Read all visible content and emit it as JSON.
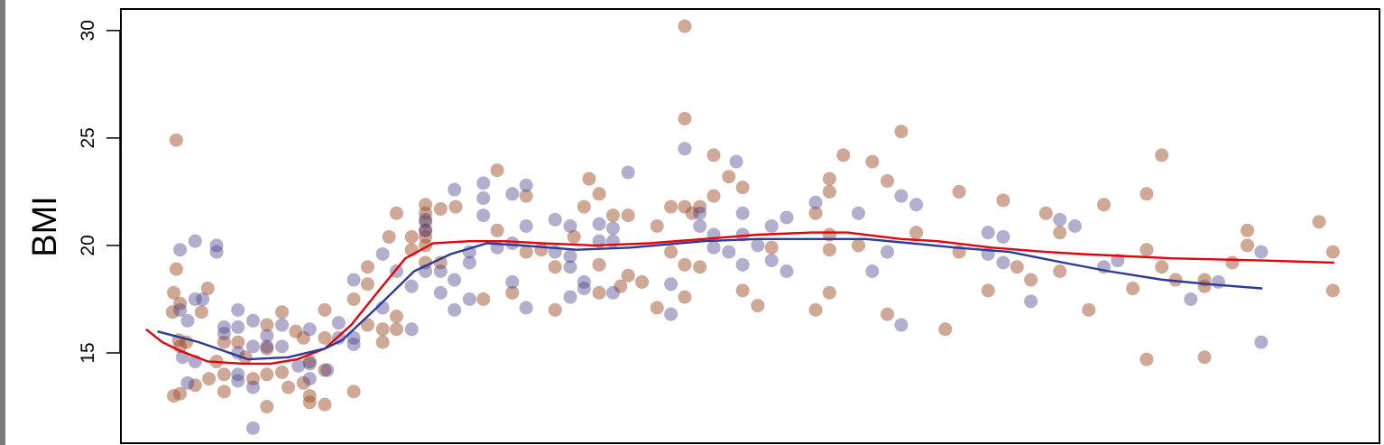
{
  "chart_data": {
    "type": "scatter",
    "title": "",
    "xlabel": "",
    "ylabel": "BMI",
    "xlim": [
      0,
      100
    ],
    "ylim": [
      10.8,
      31.0
    ],
    "yticks": [
      15,
      20,
      25,
      30
    ],
    "ytick_labels": [
      "15",
      "20",
      "25",
      "30"
    ],
    "grid": false,
    "legend": "none",
    "series": [
      {
        "name": "group-brown",
        "color": "#a0522d",
        "points": [
          [
            4.4,
            24.9
          ],
          [
            4.4,
            18.9
          ],
          [
            4.2,
            17.8
          ],
          [
            4.1,
            16.9
          ],
          [
            4.7,
            17.3
          ],
          [
            4.7,
            15.3
          ],
          [
            4.6,
            15.6
          ],
          [
            5.2,
            15.5
          ],
          [
            4.2,
            13.0
          ],
          [
            4.7,
            13.1
          ],
          [
            6.9,
            18.0
          ],
          [
            6.4,
            16.9
          ],
          [
            5.9,
            13.5
          ],
          [
            7.0,
            13.8
          ],
          [
            7.6,
            14.6
          ],
          [
            8.2,
            15.5
          ],
          [
            8.2,
            13.2
          ],
          [
            8.2,
            14.0
          ],
          [
            11.6,
            16.3
          ],
          [
            11.6,
            14.0
          ],
          [
            11.6,
            12.5
          ],
          [
            12.8,
            16.9
          ],
          [
            12.8,
            14.1
          ],
          [
            13.3,
            13.4
          ],
          [
            14.5,
            15.7
          ],
          [
            14.5,
            13.6
          ],
          [
            15.0,
            13.0
          ],
          [
            15.0,
            12.7
          ],
          [
            15.0,
            14.6
          ],
          [
            16.2,
            17.0
          ],
          [
            16.2,
            14.2
          ],
          [
            16.2,
            12.6
          ],
          [
            16.2,
            15.7
          ],
          [
            18.5,
            17.5
          ],
          [
            18.5,
            13.2
          ],
          [
            19.6,
            19.0
          ],
          [
            19.6,
            18.2
          ],
          [
            19.6,
            16.3
          ],
          [
            20.8,
            16.1
          ],
          [
            20.8,
            15.5
          ],
          [
            21.3,
            20.4
          ],
          [
            21.9,
            21.5
          ],
          [
            23.1,
            20.4
          ],
          [
            23.1,
            19.8
          ],
          [
            24.2,
            21.9
          ],
          [
            24.2,
            21.5
          ],
          [
            24.2,
            21.1
          ],
          [
            24.2,
            20.7
          ],
          [
            24.2,
            20.4
          ],
          [
            24.2,
            20.0
          ],
          [
            24.2,
            19.2
          ],
          [
            25.4,
            21.7
          ],
          [
            25.4,
            19.2
          ],
          [
            21.9,
            16.7
          ],
          [
            21.9,
            16.1
          ],
          [
            9.3,
            15.5
          ],
          [
            9.9,
            14.8
          ],
          [
            10.5,
            13.8
          ],
          [
            13.9,
            16.0
          ],
          [
            11.6,
            15.2
          ],
          [
            26.6,
            21.8
          ],
          [
            28.8,
            17.5
          ],
          [
            29.9,
            23.5
          ],
          [
            29.9,
            20.7
          ],
          [
            31.1,
            17.8
          ],
          [
            32.2,
            22.3
          ],
          [
            32.2,
            19.7
          ],
          [
            33.4,
            19.8
          ],
          [
            34.5,
            19.0
          ],
          [
            34.5,
            17.0
          ],
          [
            36.0,
            20.4
          ],
          [
            36.8,
            21.8
          ],
          [
            37.2,
            23.1
          ],
          [
            38.0,
            22.4
          ],
          [
            38.0,
            19.1
          ],
          [
            38.0,
            17.8
          ],
          [
            39.1,
            21.4
          ],
          [
            39.7,
            18.1
          ],
          [
            40.3,
            21.4
          ],
          [
            40.3,
            18.6
          ],
          [
            41.4,
            18.3
          ],
          [
            42.6,
            20.9
          ],
          [
            42.6,
            17.1
          ],
          [
            43.7,
            21.8
          ],
          [
            43.7,
            19.7
          ],
          [
            44.8,
            30.2
          ],
          [
            44.8,
            25.9
          ],
          [
            44.8,
            21.8
          ],
          [
            44.8,
            19.1
          ],
          [
            44.8,
            17.6
          ],
          [
            45.4,
            21.5
          ],
          [
            46.0,
            21.8
          ],
          [
            46.0,
            19.0
          ],
          [
            47.1,
            24.2
          ],
          [
            47.1,
            22.3
          ],
          [
            48.3,
            23.2
          ],
          [
            49.4,
            22.7
          ],
          [
            49.4,
            17.9
          ],
          [
            50.6,
            17.2
          ],
          [
            51.7,
            19.9
          ],
          [
            55.2,
            21.5
          ],
          [
            55.2,
            17.0
          ],
          [
            56.3,
            23.1
          ],
          [
            56.3,
            22.5
          ],
          [
            56.3,
            20.5
          ],
          [
            56.3,
            19.8
          ],
          [
            56.3,
            17.8
          ],
          [
            57.4,
            24.2
          ],
          [
            58.6,
            20.0
          ],
          [
            59.7,
            23.9
          ],
          [
            60.9,
            23.0
          ],
          [
            60.9,
            16.8
          ],
          [
            62.0,
            25.3
          ],
          [
            63.2,
            20.6
          ],
          [
            65.5,
            16.1
          ],
          [
            66.6,
            22.5
          ],
          [
            66.6,
            19.7
          ],
          [
            68.9,
            17.9
          ],
          [
            70.1,
            22.1
          ],
          [
            71.2,
            19.0
          ],
          [
            72.3,
            18.4
          ],
          [
            73.5,
            21.5
          ],
          [
            74.6,
            20.6
          ],
          [
            74.6,
            18.8
          ],
          [
            76.9,
            17.0
          ],
          [
            78.1,
            21.9
          ],
          [
            80.4,
            18.0
          ],
          [
            81.5,
            22.4
          ],
          [
            81.5,
            19.8
          ],
          [
            81.5,
            14.7
          ],
          [
            82.7,
            24.2
          ],
          [
            82.7,
            19.0
          ],
          [
            83.8,
            18.4
          ],
          [
            86.1,
            18.4
          ],
          [
            86.1,
            18.1
          ],
          [
            86.1,
            14.8
          ],
          [
            88.3,
            19.2
          ],
          [
            89.5,
            20.7
          ],
          [
            89.5,
            20.0
          ],
          [
            95.2,
            21.1
          ],
          [
            96.3,
            19.7
          ],
          [
            96.3,
            17.9
          ]
        ]
      },
      {
        "name": "group-blue",
        "color": "#483d8b",
        "points": [
          [
            4.7,
            19.8
          ],
          [
            5.9,
            20.2
          ],
          [
            7.6,
            20.0
          ],
          [
            7.6,
            19.7
          ],
          [
            5.9,
            17.5
          ],
          [
            6.5,
            17.5
          ],
          [
            4.7,
            17.0
          ],
          [
            5.3,
            16.5
          ],
          [
            4.9,
            14.8
          ],
          [
            5.3,
            13.6
          ],
          [
            5.9,
            14.6
          ],
          [
            8.2,
            16.2
          ],
          [
            8.2,
            15.9
          ],
          [
            9.3,
            17.0
          ],
          [
            9.3,
            16.2
          ],
          [
            9.3,
            15.0
          ],
          [
            9.3,
            14.0
          ],
          [
            9.3,
            13.7
          ],
          [
            10.5,
            16.5
          ],
          [
            10.5,
            15.3
          ],
          [
            10.5,
            13.4
          ],
          [
            10.5,
            11.5
          ],
          [
            11.6,
            15.8
          ],
          [
            11.6,
            15.3
          ],
          [
            12.8,
            16.3
          ],
          [
            12.8,
            15.3
          ],
          [
            14.1,
            14.4
          ],
          [
            15.0,
            16.1
          ],
          [
            15.0,
            14.5
          ],
          [
            15.0,
            13.8
          ],
          [
            17.3,
            15.7
          ],
          [
            17.3,
            16.4
          ],
          [
            18.5,
            18.4
          ],
          [
            18.5,
            15.7
          ],
          [
            18.5,
            15.4
          ],
          [
            20.8,
            19.6
          ],
          [
            20.8,
            17.1
          ],
          [
            21.9,
            18.8
          ],
          [
            23.1,
            16.1
          ],
          [
            23.1,
            18.1
          ],
          [
            24.2,
            21.2
          ],
          [
            24.2,
            20.7
          ],
          [
            24.2,
            18.8
          ],
          [
            25.4,
            17.8
          ],
          [
            25.4,
            18.8
          ],
          [
            16.4,
            14.2
          ],
          [
            26.5,
            22.6
          ],
          [
            26.5,
            18.4
          ],
          [
            26.5,
            17.0
          ],
          [
            27.7,
            19.7
          ],
          [
            27.7,
            19.2
          ],
          [
            27.7,
            17.5
          ],
          [
            28.8,
            22.9
          ],
          [
            28.8,
            22.2
          ],
          [
            28.8,
            21.4
          ],
          [
            29.9,
            19.9
          ],
          [
            31.1,
            22.4
          ],
          [
            31.1,
            20.1
          ],
          [
            31.1,
            18.3
          ],
          [
            32.2,
            22.8
          ],
          [
            32.2,
            20.9
          ],
          [
            32.2,
            17.1
          ],
          [
            34.5,
            21.2
          ],
          [
            34.5,
            19.7
          ],
          [
            35.7,
            20.9
          ],
          [
            35.7,
            19.5
          ],
          [
            35.7,
            19.0
          ],
          [
            35.7,
            17.6
          ],
          [
            36.8,
            18.3
          ],
          [
            36.8,
            18.0
          ],
          [
            38.0,
            21.0
          ],
          [
            38.0,
            20.2
          ],
          [
            39.1,
            20.8
          ],
          [
            39.1,
            20.2
          ],
          [
            39.1,
            17.8
          ],
          [
            40.3,
            23.4
          ],
          [
            43.7,
            18.2
          ],
          [
            43.7,
            16.8
          ],
          [
            44.8,
            24.5
          ],
          [
            46.0,
            21.5
          ],
          [
            46.0,
            20.9
          ],
          [
            47.1,
            20.5
          ],
          [
            47.1,
            19.9
          ],
          [
            48.3,
            19.7
          ],
          [
            48.9,
            23.9
          ],
          [
            49.4,
            21.5
          ],
          [
            49.4,
            20.5
          ],
          [
            49.4,
            19.1
          ],
          [
            50.6,
            20.0
          ],
          [
            51.7,
            20.9
          ],
          [
            51.7,
            19.3
          ],
          [
            52.9,
            21.3
          ],
          [
            52.9,
            18.8
          ],
          [
            55.2,
            22.0
          ],
          [
            58.6,
            21.5
          ],
          [
            59.7,
            18.8
          ],
          [
            60.9,
            19.7
          ],
          [
            62.0,
            22.3
          ],
          [
            62.0,
            16.3
          ],
          [
            63.2,
            21.9
          ],
          [
            68.9,
            20.6
          ],
          [
            68.9,
            19.6
          ],
          [
            70.1,
            20.4
          ],
          [
            70.1,
            19.2
          ],
          [
            72.3,
            17.4
          ],
          [
            74.6,
            21.2
          ],
          [
            75.8,
            20.9
          ],
          [
            78.1,
            19.0
          ],
          [
            79.2,
            19.3
          ],
          [
            85.0,
            17.5
          ],
          [
            87.2,
            18.3
          ],
          [
            90.6,
            19.7
          ],
          [
            90.6,
            15.5
          ]
        ]
      }
    ],
    "smooth_lines": [
      {
        "name": "smooth-red",
        "color": "#e8000b",
        "points": [
          [
            2.0,
            16.1
          ],
          [
            3.3,
            15.5
          ],
          [
            4.7,
            15.1
          ],
          [
            6.9,
            14.6
          ],
          [
            9.7,
            14.5
          ],
          [
            11.9,
            14.5
          ],
          [
            14.0,
            14.7
          ],
          [
            16.2,
            15.2
          ],
          [
            18.3,
            16.3
          ],
          [
            20.5,
            17.9
          ],
          [
            22.6,
            19.4
          ],
          [
            24.8,
            20.1
          ],
          [
            27.7,
            20.2
          ],
          [
            30.5,
            20.2
          ],
          [
            33.4,
            20.1
          ],
          [
            37.7,
            20.0
          ],
          [
            42.0,
            20.1
          ],
          [
            46.3,
            20.3
          ],
          [
            50.6,
            20.5
          ],
          [
            54.9,
            20.6
          ],
          [
            57.7,
            20.6
          ],
          [
            62.0,
            20.3
          ],
          [
            64.9,
            20.2
          ],
          [
            69.2,
            19.9
          ],
          [
            73.5,
            19.7
          ],
          [
            76.4,
            19.6
          ],
          [
            83.5,
            19.4
          ],
          [
            90.7,
            19.3
          ],
          [
            96.4,
            19.2
          ]
        ]
      },
      {
        "name": "smooth-blue",
        "color": "#2a3a9a",
        "points": [
          [
            2.9,
            16.0
          ],
          [
            6.2,
            15.5
          ],
          [
            10.1,
            14.7
          ],
          [
            13.3,
            14.8
          ],
          [
            16.2,
            15.2
          ],
          [
            17.6,
            15.6
          ],
          [
            20.5,
            17.2
          ],
          [
            23.3,
            18.8
          ],
          [
            26.2,
            19.6
          ],
          [
            29.1,
            20.1
          ],
          [
            31.9,
            20.0
          ],
          [
            36.2,
            19.8
          ],
          [
            40.5,
            19.9
          ],
          [
            46.3,
            20.2
          ],
          [
            50.6,
            20.3
          ],
          [
            54.9,
            20.3
          ],
          [
            59.2,
            20.3
          ],
          [
            62.8,
            20.1
          ],
          [
            66.3,
            19.9
          ],
          [
            70.6,
            19.7
          ],
          [
            74.9,
            19.2
          ],
          [
            78.5,
            18.8
          ],
          [
            82.8,
            18.4
          ],
          [
            86.4,
            18.2
          ],
          [
            90.7,
            18.0
          ]
        ]
      }
    ]
  }
}
